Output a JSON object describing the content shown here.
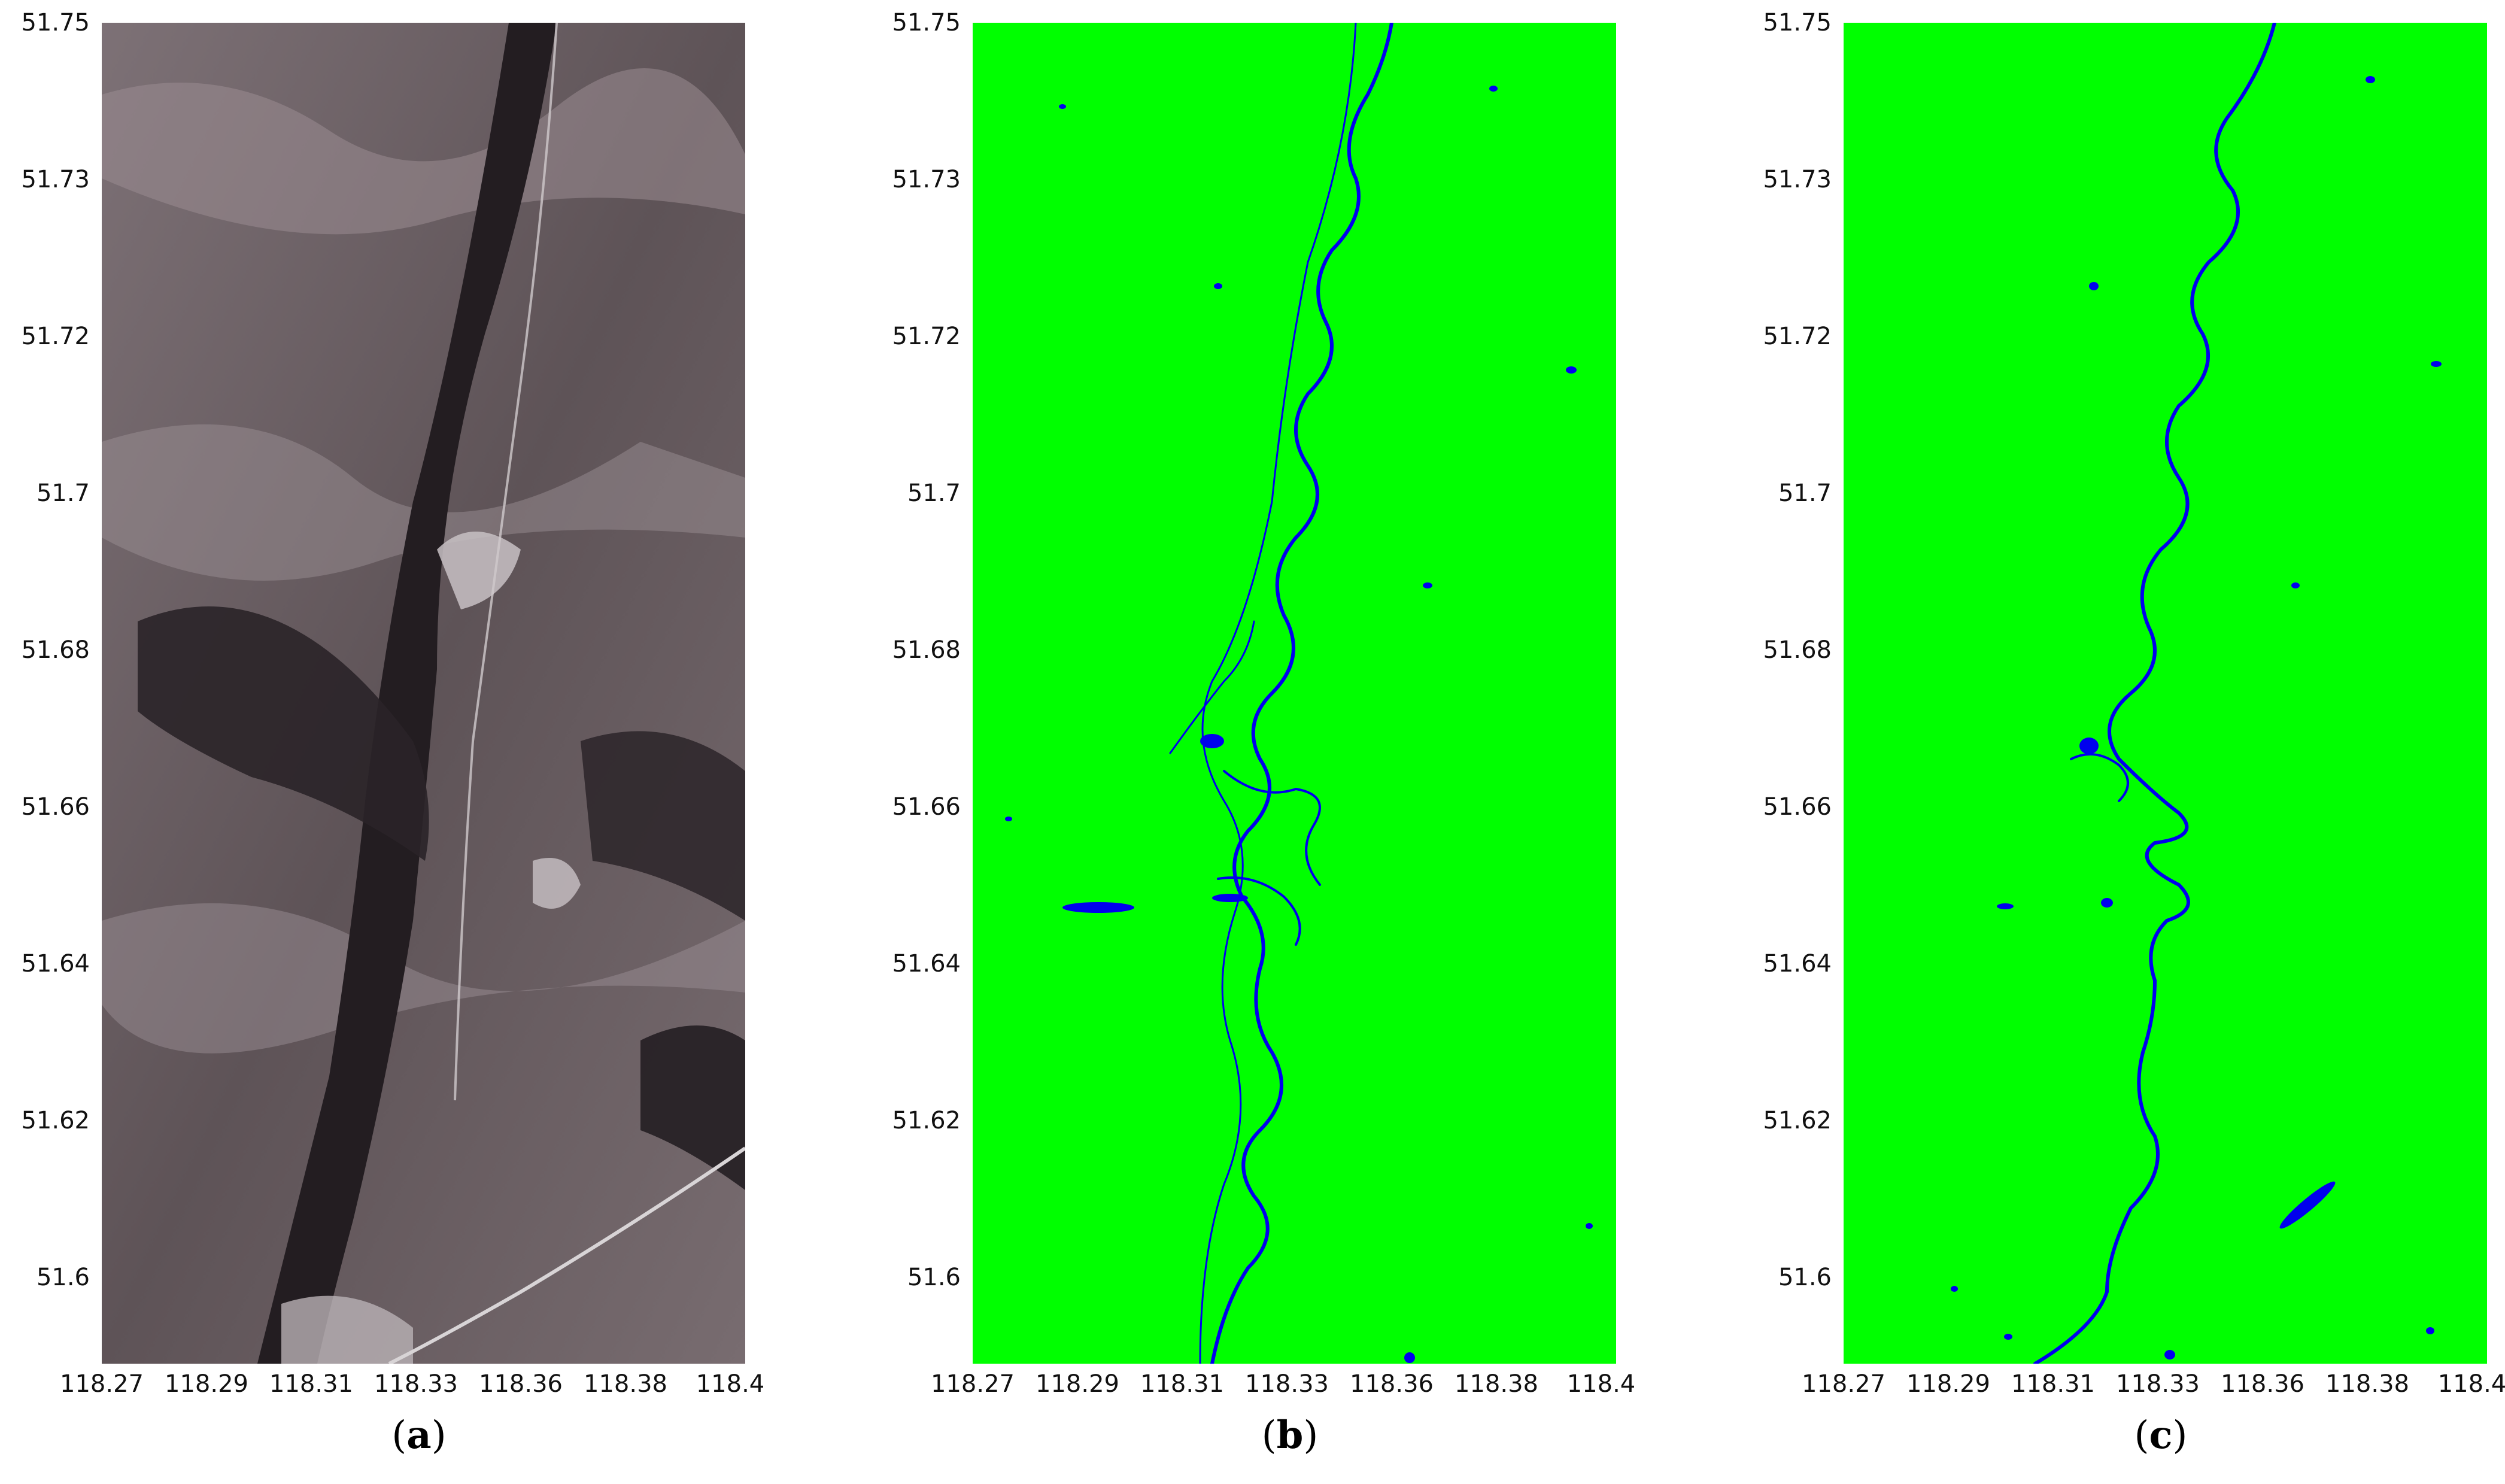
{
  "figure": {
    "y_ticks": [
      "51.75",
      "51.73",
      "51.72",
      "51.7",
      "51.68",
      "51.66",
      "51.64",
      "51.62",
      "51.6"
    ],
    "x_ticks": [
      "118.27",
      "118.29",
      "118.31",
      "118.33",
      "118.36",
      "118.38",
      "118.4"
    ],
    "panels": [
      {
        "label": "a",
        "kind": "satellite-true-color"
      },
      {
        "label": "b",
        "kind": "water-classification"
      },
      {
        "label": "c",
        "kind": "water-classification"
      }
    ],
    "colors": {
      "land": "#00ff00",
      "water": "#0000ee",
      "terrain_dark": "#2b2428",
      "terrain_light": "#8a7f84"
    }
  }
}
